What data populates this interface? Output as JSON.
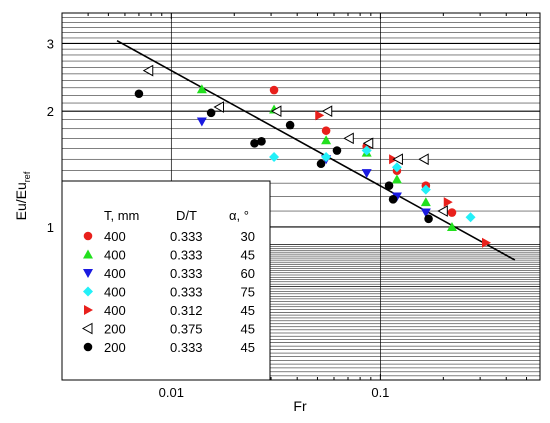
{
  "chart_data": {
    "type": "scatter",
    "xlabel": "Fr",
    "ylabel": "Eu/Eu",
    "ylabel_subscript": "ref",
    "xscale": "log",
    "yscale": "log",
    "xlim": [
      0.003,
      0.58
    ],
    "ylim": [
      0.4,
      3.6
    ],
    "grid": true,
    "x_major_ticks": [
      0.01,
      0.1
    ],
    "x_tick_labels": [
      "0.01",
      "0.1"
    ],
    "y_major_ticks": [
      1,
      2,
      3
    ],
    "y_tick_labels": [
      "1",
      "2",
      "3"
    ],
    "fit_line": {
      "x": [
        0.0055,
        0.44
      ],
      "y": [
        3.05,
        0.82
      ]
    },
    "legend": {
      "placement": "bottom-left",
      "headers": [
        "T, mm",
        "D/T",
        "α, °"
      ],
      "rows": [
        {
          "T": "400",
          "DT": "0.333",
          "alpha": "30",
          "marker": "circle",
          "color": "#e8201c",
          "filled": true
        },
        {
          "T": "400",
          "DT": "0.333",
          "alpha": "45",
          "marker": "triangle-up",
          "color": "#22e01e",
          "filled": true
        },
        {
          "T": "400",
          "DT": "0.333",
          "alpha": "60",
          "marker": "triangle-down",
          "color": "#1a1ae0",
          "filled": true
        },
        {
          "T": "400",
          "DT": "0.333",
          "alpha": "75",
          "marker": "diamond",
          "color": "#22f0f8",
          "filled": true
        },
        {
          "T": "400",
          "DT": "0.312",
          "alpha": "45",
          "marker": "triangle-right",
          "color": "#e8201c",
          "filled": true
        },
        {
          "T": "200",
          "DT": "0.375",
          "alpha": "45",
          "marker": "triangle-left",
          "color": "#000000",
          "filled": false
        },
        {
          "T": "200",
          "DT": "0.333",
          "alpha": "45",
          "marker": "circle",
          "color": "#000000",
          "filled": true
        }
      ]
    },
    "series": [
      {
        "marker": "circle",
        "color": "#e8201c",
        "filled": true,
        "x": [
          0.031,
          0.055,
          0.086,
          0.12,
          0.165,
          0.22
        ],
        "y": [
          2.27,
          1.78,
          1.62,
          1.4,
          1.28,
          1.09
        ]
      },
      {
        "marker": "triangle-up",
        "color": "#22e01e",
        "filled": true,
        "x": [
          0.014,
          0.031,
          0.055,
          0.086,
          0.12,
          0.165,
          0.22
        ],
        "y": [
          2.28,
          2.02,
          1.68,
          1.56,
          1.33,
          1.16,
          1.0
        ]
      },
      {
        "marker": "triangle-down",
        "color": "#1a1ae0",
        "filled": true,
        "x": [
          0.014,
          0.055,
          0.086,
          0.12,
          0.165
        ],
        "y": [
          1.88,
          1.5,
          1.38,
          1.2,
          1.09
        ]
      },
      {
        "marker": "diamond",
        "color": "#22f0f8",
        "filled": true,
        "x": [
          0.031,
          0.055,
          0.086,
          0.12,
          0.165,
          0.27
        ],
        "y": [
          1.52,
          1.52,
          1.58,
          1.43,
          1.25,
          1.06
        ]
      },
      {
        "marker": "triangle-right",
        "color": "#e8201c",
        "filled": true,
        "x": [
          0.051,
          0.115,
          0.21,
          0.32
        ],
        "y": [
          1.95,
          1.5,
          1.16,
          0.91
        ]
      },
      {
        "marker": "triangle-left",
        "color": "#000000",
        "filled": false,
        "x": [
          0.0078,
          0.017,
          0.032,
          0.056,
          0.071,
          0.088,
          0.122,
          0.162,
          0.2
        ],
        "y": [
          2.55,
          2.05,
          2.0,
          2.0,
          1.7,
          1.65,
          1.5,
          1.5,
          1.1
        ]
      },
      {
        "marker": "circle",
        "color": "#000000",
        "filled": true,
        "x": [
          0.007,
          0.0155,
          0.025,
          0.027,
          0.037,
          0.052,
          0.062,
          0.11,
          0.115,
          0.17
        ],
        "y": [
          2.22,
          1.98,
          1.65,
          1.67,
          1.84,
          1.46,
          1.58,
          1.28,
          1.18,
          1.05
        ]
      }
    ]
  }
}
